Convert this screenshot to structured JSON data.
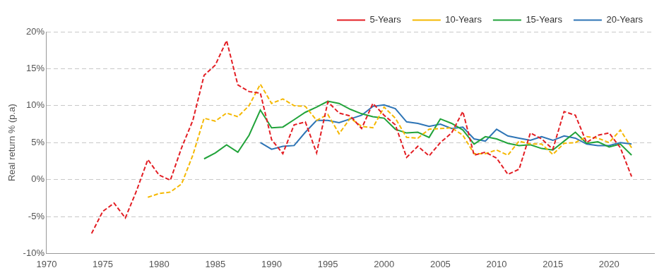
{
  "chart_data": {
    "type": "line",
    "y_label": "Real return % (p.a)",
    "x": [
      1974,
      1975,
      1976,
      1977,
      1978,
      1979,
      1980,
      1981,
      1982,
      1983,
      1984,
      1985,
      1986,
      1987,
      1988,
      1989,
      1990,
      1991,
      1992,
      1993,
      1994,
      1995,
      1996,
      1997,
      1998,
      1999,
      2000,
      2001,
      2002,
      2003,
      2004,
      2005,
      2006,
      2007,
      2008,
      2009,
      2010,
      2011,
      2012,
      2013,
      2014,
      2015,
      2016,
      2017,
      2018,
      2019,
      2020,
      2021,
      2022
    ],
    "series": [
      {
        "name": "5-Years",
        "color": "#e31e24",
        "line_style": "dashed",
        "marker": "none",
        "values": [
          -7.3,
          -4.3,
          -3.2,
          -5.2,
          -1.5,
          2.7,
          0.6,
          -0.1,
          4.3,
          8.0,
          14.1,
          15.5,
          18.8,
          12.8,
          11.9,
          11.7,
          5.4,
          3.5,
          7.4,
          7.8,
          3.6,
          10.5,
          9.0,
          8.6,
          6.9,
          10.3,
          8.7,
          7.4,
          3.0,
          4.5,
          3.2,
          5.0,
          6.3,
          9.2,
          3.3,
          3.7,
          2.9,
          0.7,
          1.4,
          6.3,
          5.5,
          4.1,
          9.2,
          8.7,
          5.0,
          6.0,
          6.3,
          4.3,
          0.4
        ]
      },
      {
        "name": "10-Years",
        "color": "#f5b800",
        "line_style": "dashed",
        "marker": "none",
        "values": [
          null,
          null,
          null,
          null,
          null,
          -2.4,
          -1.9,
          -1.7,
          -0.6,
          3.3,
          8.3,
          7.9,
          9.0,
          8.5,
          10.0,
          12.9,
          10.3,
          10.9,
          10.0,
          9.9,
          8.0,
          8.8,
          6.2,
          8.3,
          7.2,
          7.0,
          9.8,
          8.3,
          5.7,
          5.6,
          6.8,
          6.9,
          7.0,
          6.0,
          3.5,
          3.5,
          4.0,
          3.3,
          5.2,
          4.8,
          4.8,
          3.4,
          4.9,
          5.0,
          5.8,
          5.6,
          5.0,
          6.7,
          4.3
        ]
      },
      {
        "name": "15-Years",
        "color": "#21a33a",
        "line_style": "solid",
        "marker": "none",
        "values": [
          null,
          null,
          null,
          null,
          null,
          null,
          null,
          null,
          null,
          null,
          2.8,
          3.6,
          4.7,
          3.7,
          6.0,
          9.4,
          7.0,
          7.1,
          8.1,
          9.1,
          9.8,
          10.6,
          10.3,
          9.5,
          8.9,
          8.5,
          8.3,
          6.8,
          6.3,
          6.4,
          5.7,
          8.2,
          7.6,
          6.7,
          4.8,
          5.8,
          5.5,
          4.9,
          4.6,
          4.7,
          4.2,
          4.0,
          5.2,
          6.4,
          4.9,
          5.1,
          4.4,
          4.8,
          3.3
        ]
      },
      {
        "name": "20-Years",
        "color": "#2e75b6",
        "line_style": "solid",
        "marker": "none",
        "values": [
          null,
          null,
          null,
          null,
          null,
          null,
          null,
          null,
          null,
          null,
          null,
          null,
          null,
          null,
          null,
          5.0,
          4.1,
          4.5,
          4.6,
          6.4,
          8.0,
          8.0,
          7.7,
          8.2,
          8.7,
          9.9,
          10.1,
          9.6,
          7.8,
          7.6,
          7.2,
          7.5,
          6.9,
          7.1,
          5.5,
          5.2,
          6.8,
          5.9,
          5.6,
          5.3,
          5.8,
          5.3,
          5.9,
          5.6,
          4.8,
          4.6,
          4.6,
          5.0,
          4.8
        ]
      }
    ],
    "xlim": [
      1970,
      2024
    ],
    "xticks": [
      1970,
      1975,
      1980,
      1985,
      1990,
      1995,
      2000,
      2005,
      2010,
      2015,
      2020
    ],
    "ylim": [
      -10,
      20
    ],
    "yticks": [
      {
        "value": -10,
        "label": "-10%"
      },
      {
        "value": -5,
        "label": "-5%"
      },
      {
        "value": 0,
        "label": "0%"
      },
      {
        "value": 5,
        "label": "5%"
      },
      {
        "value": 10,
        "label": "10%"
      },
      {
        "value": 15,
        "label": "15%"
      },
      {
        "value": 20,
        "label": "20%"
      }
    ],
    "grid": true,
    "legend": "upper right"
  }
}
